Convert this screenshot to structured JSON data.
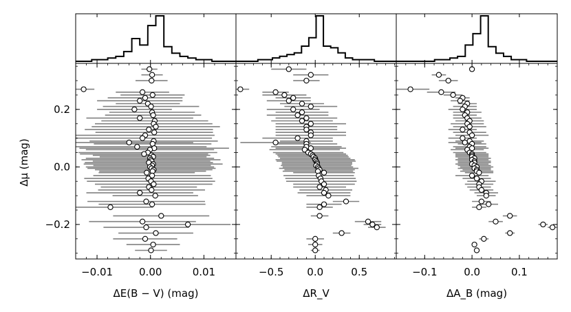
{
  "chart_data": {
    "type": "scatter",
    "ylabel": "Δμ (mag)",
    "ylim": [
      -0.32,
      0.36
    ],
    "yticks": [
      {
        "value": 0.2,
        "label": "0.2"
      },
      {
        "value": 0.0,
        "label": "0.0"
      },
      {
        "value": -0.2,
        "label": "−0.2"
      }
    ],
    "dy": [
      0.34,
      0.32,
      0.3,
      0.27,
      0.26,
      0.25,
      0.24,
      0.23,
      0.22,
      0.21,
      0.2,
      0.19,
      0.18,
      0.17,
      0.16,
      0.15,
      0.14,
      0.13,
      0.12,
      0.11,
      0.1,
      0.09,
      0.085,
      0.08,
      0.07,
      0.065,
      0.06,
      0.05,
      0.045,
      0.04,
      0.035,
      0.03,
      0.025,
      0.02,
      0.015,
      0.01,
      0.005,
      0.0,
      -0.005,
      -0.01,
      -0.015,
      -0.02,
      -0.03,
      -0.04,
      -0.05,
      -0.06,
      -0.07,
      -0.08,
      -0.09,
      -0.1,
      -0.12,
      -0.13,
      -0.14,
      -0.17,
      -0.19,
      -0.2,
      -0.21,
      -0.23,
      -0.25,
      -0.27,
      -0.29
    ],
    "panels": [
      {
        "xlabel": "ΔE(B − V) (mag)",
        "xlim": [
          -0.014,
          0.016
        ],
        "xticks": [
          {
            "value": -0.01,
            "label": "−0.01"
          },
          {
            "value": 0.0,
            "label": "0.00"
          },
          {
            "value": 0.01,
            "label": "0.01"
          }
        ],
        "hist": [
          0,
          0,
          1,
          1,
          2,
          3,
          6,
          14,
          10,
          22,
          28,
          9,
          5,
          3,
          2,
          1,
          1,
          0,
          0,
          0
        ],
        "x": [
          -0.0002,
          0.0003,
          0.0002,
          -0.0125,
          -0.0015,
          0.0004,
          -0.001,
          -0.002,
          -0.0005,
          0.0001,
          -0.003,
          0.0003,
          0.0005,
          -0.002,
          0.0008,
          0.0006,
          0.001,
          -0.0003,
          0.0007,
          -0.001,
          -0.0015,
          0.0006,
          -0.004,
          0.0004,
          -0.0025,
          0.0007,
          -0.0001,
          -0.0005,
          -0.0012,
          0.0002,
          0.0005,
          -0.0001,
          0.0001,
          0.0002,
          -0.0003,
          0.0005,
          0.0003,
          -0.0001,
          0.0002,
          0.0006,
          0.0004,
          -0.0007,
          0.0003,
          -0.0004,
          0.0001,
          0.0006,
          -0.0003,
          0.0002,
          -0.002,
          0.0009,
          -0.0008,
          0.0003,
          -0.0075,
          0.002,
          -0.0015,
          0.007,
          -0.0008,
          0.001,
          -0.001,
          0.0005,
          0.0001
        ],
        "err": [
          0.0015,
          0.002,
          0.003,
          0.002,
          0.005,
          0.006,
          0.007,
          0.008,
          0.006,
          0.009,
          0.007,
          0.008,
          0.009,
          0.01,
          0.01,
          0.011,
          0.012,
          0.012,
          0.011,
          0.013,
          0.013,
          0.012,
          0.012,
          0.011,
          0.013,
          0.014,
          0.012,
          0.013,
          0.012,
          0.011,
          0.01,
          0.012,
          0.013,
          0.011,
          0.012,
          0.013,
          0.011,
          0.012,
          0.012,
          0.011,
          0.01,
          0.009,
          0.011,
          0.012,
          0.012,
          0.011,
          0.009,
          0.01,
          0.01,
          0.008,
          0.011,
          0.01,
          0.008,
          0.009,
          0.01,
          0.008,
          0.008,
          0.007,
          0.006,
          0.005,
          0.003
        ]
      },
      {
        "xlabel": "ΔR_V",
        "xlim": [
          -0.9,
          0.92
        ],
        "xticks": [
          {
            "value": -0.5,
            "label": "−0.5"
          },
          {
            "value": 0.0,
            "label": "0.0"
          },
          {
            "value": 0.5,
            "label": "0.5"
          }
        ],
        "hist": [
          0,
          0,
          0,
          1,
          1,
          2,
          3,
          4,
          5,
          9,
          14,
          27,
          9,
          8,
          5,
          2,
          1,
          1,
          1,
          0,
          0,
          0
        ],
        "x": [
          -0.3,
          -0.05,
          -0.1,
          -0.85,
          -0.45,
          -0.35,
          -0.25,
          -0.3,
          -0.15,
          -0.05,
          -0.25,
          -0.15,
          -0.2,
          -0.1,
          -0.15,
          -0.05,
          -0.1,
          -0.1,
          -0.05,
          -0.05,
          -0.2,
          -0.1,
          -0.45,
          -0.1,
          -0.1,
          -0.05,
          -0.12,
          -0.08,
          -0.05,
          -0.03,
          -0.02,
          0.0,
          0.0,
          0.01,
          0.02,
          0.02,
          0.01,
          0.03,
          0.04,
          0.05,
          0.03,
          0.1,
          0.04,
          0.06,
          0.07,
          0.1,
          0.05,
          0.12,
          0.1,
          0.15,
          0.35,
          0.1,
          0.05,
          0.05,
          0.6,
          0.65,
          0.7,
          0.3,
          0.0,
          0.0,
          0.0
        ],
        "err": [
          0.2,
          0.2,
          0.15,
          0.1,
          0.15,
          0.25,
          0.2,
          0.25,
          0.25,
          0.3,
          0.3,
          0.3,
          0.35,
          0.35,
          0.35,
          0.4,
          0.35,
          0.35,
          0.4,
          0.4,
          0.4,
          0.3,
          0.4,
          0.35,
          0.4,
          0.4,
          0.4,
          0.4,
          0.4,
          0.4,
          0.4,
          0.4,
          0.45,
          0.45,
          0.4,
          0.4,
          0.4,
          0.4,
          0.45,
          0.4,
          0.4,
          0.35,
          0.4,
          0.4,
          0.4,
          0.35,
          0.3,
          0.3,
          0.3,
          0.25,
          0.15,
          0.2,
          0.15,
          0.1,
          0.15,
          0.1,
          0.1,
          0.1,
          0.1,
          0.08,
          0.05
        ]
      },
      {
        "xlabel": "ΔA_B (mag)",
        "xlim": [
          -0.16,
          0.18
        ],
        "xticks": [
          {
            "value": -0.1,
            "label": "−0.1"
          },
          {
            "value": 0.0,
            "label": "0.0"
          },
          {
            "value": 0.1,
            "label": "0.1"
          }
        ],
        "hist": [
          0,
          0,
          0,
          0,
          0,
          1,
          1,
          2,
          3,
          10,
          17,
          28,
          9,
          5,
          3,
          1,
          1,
          0,
          0,
          0,
          0
        ],
        "x": [
          0.0,
          -0.07,
          -0.05,
          -0.13,
          -0.065,
          -0.04,
          -0.02,
          -0.025,
          -0.01,
          -0.015,
          -0.02,
          -0.01,
          -0.015,
          -0.01,
          -0.005,
          -0.01,
          -0.005,
          -0.02,
          -0.005,
          0.0,
          -0.02,
          -0.005,
          -0.015,
          0.0,
          -0.005,
          0.0,
          -0.01,
          -0.005,
          0.0,
          0.0,
          0.0,
          0.005,
          0.0,
          0.005,
          0.005,
          0.0,
          0.005,
          0.01,
          0.005,
          0.01,
          0.01,
          0.015,
          0.0,
          0.01,
          0.02,
          0.015,
          0.015,
          0.02,
          0.03,
          0.03,
          0.02,
          0.035,
          0.015,
          0.08,
          0.05,
          0.15,
          0.17,
          0.08,
          0.025,
          0.005,
          0.01
        ],
        "err": [
          0.005,
          0.015,
          0.02,
          0.04,
          0.03,
          0.02,
          0.015,
          0.02,
          0.02,
          0.025,
          0.03,
          0.03,
          0.025,
          0.03,
          0.03,
          0.035,
          0.035,
          0.03,
          0.035,
          0.035,
          0.03,
          0.03,
          0.035,
          0.03,
          0.035,
          0.035,
          0.035,
          0.035,
          0.035,
          0.035,
          0.035,
          0.035,
          0.035,
          0.035,
          0.035,
          0.035,
          0.035,
          0.035,
          0.035,
          0.03,
          0.035,
          0.03,
          0.035,
          0.03,
          0.03,
          0.03,
          0.025,
          0.025,
          0.025,
          0.02,
          0.02,
          0.02,
          0.015,
          0.015,
          0.015,
          0.01,
          0.01,
          0.01,
          0.01,
          0.005,
          0.005
        ]
      }
    ]
  }
}
